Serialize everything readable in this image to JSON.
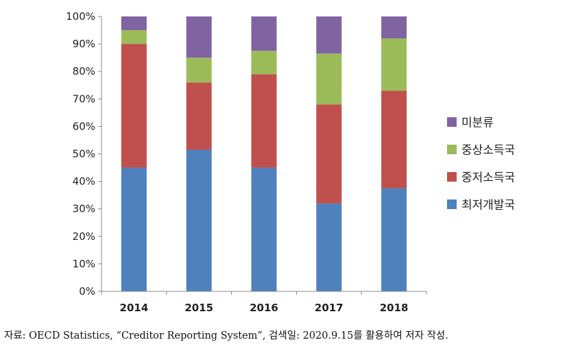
{
  "chart_data": {
    "type": "bar",
    "stacked": true,
    "categories": [
      "2014",
      "2015",
      "2016",
      "2017",
      "2018"
    ],
    "series": [
      {
        "name": "최저개발국",
        "color": "#4f81bd",
        "values": [
          45,
          51.5,
          45,
          32,
          37.5
        ]
      },
      {
        "name": "중저소득국",
        "color": "#c0504d",
        "values": [
          45,
          24.5,
          34,
          36,
          35.5
        ]
      },
      {
        "name": "중상소득국",
        "color": "#9bbb59",
        "values": [
          5,
          9,
          8.5,
          18.5,
          19
        ]
      },
      {
        "name": "미분류",
        "color": "#8064a2",
        "values": [
          5,
          15,
          12.5,
          13.5,
          8
        ]
      }
    ],
    "y_ticks": [
      "0%",
      "10%",
      "20%",
      "30%",
      "40%",
      "50%",
      "60%",
      "70%",
      "80%",
      "90%",
      "100%"
    ],
    "ylim": [
      0,
      100
    ],
    "legend_order": [
      "미분류",
      "중상소득국",
      "중저소득국",
      "최저개발국"
    ],
    "legend_position": "right",
    "grid": false
  },
  "source_note": "자료: OECD Statistics, “Creditor Reporting System”, 검색일: 2020.9.15를 활용하여 저자 작성."
}
